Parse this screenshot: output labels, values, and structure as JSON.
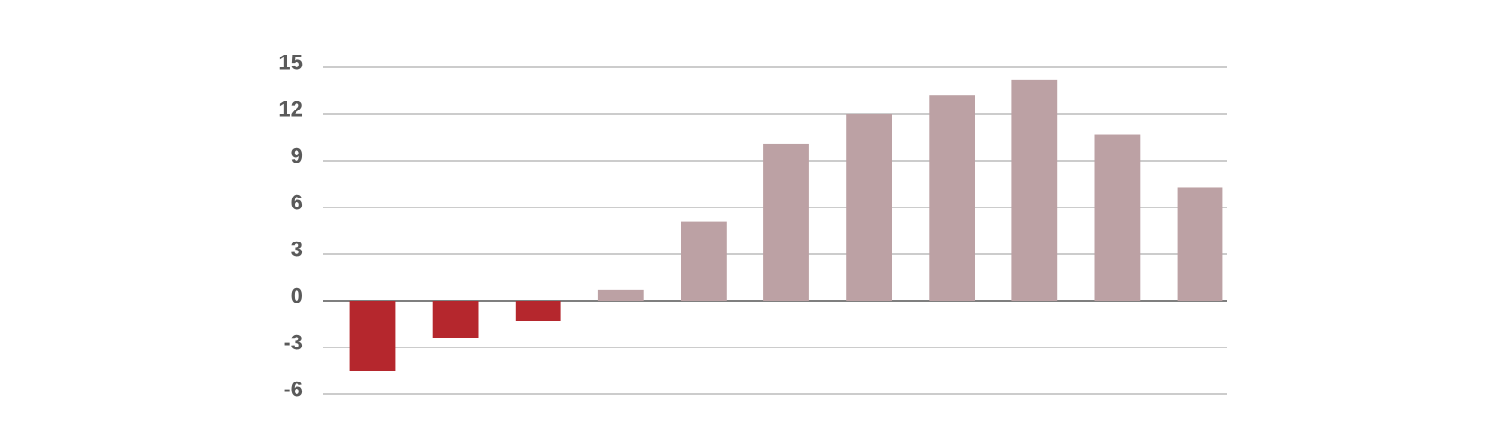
{
  "chart_data": {
    "type": "bar",
    "categories": [
      null,
      null,
      null,
      null,
      null,
      null,
      null,
      null,
      null,
      null,
      null
    ],
    "values": [
      -4.5,
      -2.4,
      -1.3,
      0.7,
      5.1,
      10.1,
      12.0,
      13.2,
      14.2,
      10.7,
      7.3
    ],
    "color": "#bca1a4",
    "negative_color": "#b5272d",
    "ylim": [
      -6,
      15
    ],
    "yticks": [
      -6,
      -3,
      0,
      3,
      6,
      9,
      12,
      15
    ],
    "grid": true
  }
}
